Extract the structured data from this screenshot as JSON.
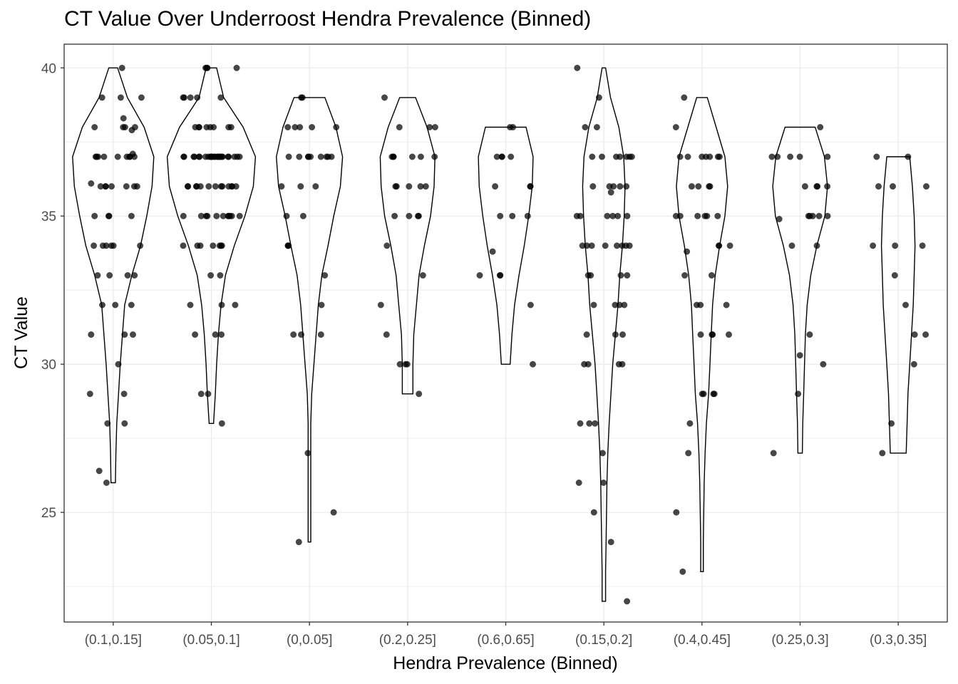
{
  "chart_data": {
    "type": "violin",
    "title": "CT Value Over Underroost Hendra Prevalence (Binned)",
    "xlabel": "Hendra Prevalence (Binned)",
    "ylabel": "CT Value",
    "ylim": [
      21.3,
      40.8
    ],
    "yticks": [
      25,
      30,
      35,
      40
    ],
    "grid": true,
    "colors": {
      "points": "#000000",
      "outline": "#000000",
      "grid": "#ebebeb",
      "panel_border": "#333333"
    },
    "categories": [
      "(0.1,0.15]",
      "(0.05,0.1]",
      "(0,0.05]",
      "(0.2,0.25]",
      "(0.6,0.65]",
      "(0.15,0.2]",
      "(0.4,0.45]",
      "(0.25,0.3]",
      "(0.3,0.35]"
    ],
    "series": [
      {
        "category": "(0.1,0.15]",
        "min": 26,
        "max": 40,
        "density": [
          [
            26,
            0.05
          ],
          [
            27,
            0.06
          ],
          [
            28,
            0.08
          ],
          [
            29,
            0.12
          ],
          [
            30,
            0.16
          ],
          [
            31,
            0.21
          ],
          [
            32,
            0.26
          ],
          [
            33,
            0.42
          ],
          [
            34,
            0.62
          ],
          [
            35,
            0.76
          ],
          [
            36,
            0.88
          ],
          [
            37,
            0.92
          ],
          [
            38,
            0.7
          ],
          [
            39,
            0.32
          ],
          [
            40,
            0.1
          ]
        ],
        "values": [
          40,
          39,
          39,
          39,
          38.3,
          38,
          38,
          38,
          38,
          37.9,
          37,
          37,
          37,
          37,
          37,
          37,
          37,
          37,
          37,
          37.1,
          36.1,
          36,
          36,
          36,
          36,
          36,
          36,
          36,
          35,
          35,
          35,
          35,
          34,
          34,
          34,
          34,
          34,
          34,
          33,
          33,
          33,
          33,
          32,
          32,
          32,
          31,
          31,
          31,
          30,
          29,
          29,
          28,
          28,
          26.4,
          26
        ]
      },
      {
        "category": "(0.05,0.1]",
        "min": 28,
        "max": 40,
        "density": [
          [
            28,
            0.05
          ],
          [
            29,
            0.09
          ],
          [
            30,
            0.12
          ],
          [
            31,
            0.16
          ],
          [
            32,
            0.22
          ],
          [
            33,
            0.32
          ],
          [
            34,
            0.52
          ],
          [
            35,
            0.76
          ],
          [
            36,
            0.95
          ],
          [
            37,
            1.0
          ],
          [
            38,
            0.72
          ],
          [
            39,
            0.28
          ],
          [
            40,
            0.12
          ]
        ],
        "values": [
          40,
          40,
          40,
          40,
          39,
          39,
          39,
          39,
          39,
          38,
          38,
          38,
          38,
          38,
          38,
          38,
          38,
          37,
          37,
          37,
          37,
          37,
          37,
          37,
          37,
          37,
          37,
          37,
          37,
          37,
          37,
          37,
          37,
          37,
          37,
          37,
          37,
          37,
          37,
          37,
          37,
          37,
          37,
          36,
          36,
          36,
          36,
          36,
          36,
          36,
          36,
          36,
          36,
          36,
          36,
          36,
          35,
          35,
          35,
          35,
          35,
          35,
          35,
          35,
          35,
          35,
          35,
          34,
          34,
          34,
          34,
          34,
          34,
          34,
          33,
          33,
          32,
          32,
          32,
          31,
          31,
          31,
          29,
          29,
          28
        ]
      },
      {
        "category": "(0,0.05]",
        "min": 24,
        "max": 39,
        "density": [
          [
            24,
            0.03
          ],
          [
            25,
            0.03
          ],
          [
            26,
            0.03
          ],
          [
            27,
            0.03
          ],
          [
            28,
            0.03
          ],
          [
            29,
            0.05
          ],
          [
            30,
            0.1
          ],
          [
            31,
            0.15
          ],
          [
            32,
            0.2
          ],
          [
            33,
            0.28
          ],
          [
            34,
            0.42
          ],
          [
            35,
            0.55
          ],
          [
            36,
            0.7
          ],
          [
            37,
            0.75
          ],
          [
            38,
            0.6
          ],
          [
            39,
            0.35
          ]
        ],
        "values": [
          39,
          39,
          38,
          38,
          38,
          38,
          38,
          37,
          37,
          37,
          37,
          37,
          37,
          37,
          37,
          37,
          36,
          36,
          36,
          35,
          35,
          34,
          34,
          34,
          33,
          32,
          31,
          31,
          31,
          27,
          25,
          24
        ]
      },
      {
        "category": "(0.2,0.25]",
        "min": 29,
        "max": 39,
        "density": [
          [
            29,
            0.12
          ],
          [
            30,
            0.12
          ],
          [
            31,
            0.14
          ],
          [
            32,
            0.2
          ],
          [
            33,
            0.26
          ],
          [
            34,
            0.38
          ],
          [
            35,
            0.52
          ],
          [
            36,
            0.6
          ],
          [
            37,
            0.62
          ],
          [
            38,
            0.44
          ],
          [
            39,
            0.18
          ]
        ],
        "values": [
          39,
          38,
          38,
          38,
          37,
          37,
          37,
          37,
          37,
          37,
          36,
          36,
          36,
          36,
          36,
          35,
          35,
          35,
          35,
          34,
          33,
          32,
          31,
          30,
          30,
          30,
          29
        ]
      },
      {
        "category": "(0.6,0.65]",
        "min": 30,
        "max": 38,
        "density": [
          [
            30,
            0.1
          ],
          [
            31,
            0.14
          ],
          [
            32,
            0.2
          ],
          [
            33,
            0.3
          ],
          [
            34,
            0.42
          ],
          [
            35,
            0.52
          ],
          [
            36,
            0.6
          ],
          [
            37,
            0.62
          ],
          [
            38,
            0.46
          ]
        ],
        "values": [
          38,
          38,
          37,
          37,
          37,
          37,
          36,
          36,
          36,
          35,
          35,
          35,
          33.8,
          33,
          33,
          33,
          32,
          30
        ]
      },
      {
        "category": "(0.15,0.2]",
        "min": 22,
        "max": 40,
        "density": [
          [
            22,
            0.04
          ],
          [
            23,
            0.04
          ],
          [
            24,
            0.05
          ],
          [
            25,
            0.06
          ],
          [
            26,
            0.07
          ],
          [
            27,
            0.09
          ],
          [
            28,
            0.12
          ],
          [
            29,
            0.16
          ],
          [
            30,
            0.2
          ],
          [
            31,
            0.26
          ],
          [
            32,
            0.32
          ],
          [
            33,
            0.36
          ],
          [
            34,
            0.42
          ],
          [
            35,
            0.46
          ],
          [
            36,
            0.48
          ],
          [
            37,
            0.45
          ],
          [
            38,
            0.34
          ],
          [
            39,
            0.15
          ],
          [
            40,
            0.04
          ]
        ],
        "values": [
          40,
          39,
          38,
          38,
          37,
          37,
          37,
          37,
          37,
          37,
          37,
          36,
          36,
          36,
          36,
          36,
          35.8,
          35,
          35,
          35,
          35,
          35,
          35,
          34,
          34,
          34,
          34,
          34,
          34,
          34,
          34,
          33,
          33,
          33,
          33,
          32,
          32,
          32,
          32,
          31,
          31,
          31,
          30,
          30,
          30,
          30,
          28,
          28,
          28,
          27,
          26,
          26,
          25,
          24,
          22
        ]
      },
      {
        "category": "(0.4,0.45]",
        "min": 23,
        "max": 39,
        "density": [
          [
            23,
            0.03
          ],
          [
            24,
            0.03
          ],
          [
            25,
            0.04
          ],
          [
            26,
            0.05
          ],
          [
            27,
            0.07
          ],
          [
            28,
            0.1
          ],
          [
            29,
            0.15
          ],
          [
            30,
            0.18
          ],
          [
            31,
            0.21
          ],
          [
            32,
            0.24
          ],
          [
            33,
            0.3
          ],
          [
            34,
            0.4
          ],
          [
            35,
            0.52
          ],
          [
            36,
            0.58
          ],
          [
            37,
            0.52
          ],
          [
            38,
            0.32
          ],
          [
            39,
            0.12
          ]
        ],
        "values": [
          39,
          38,
          37,
          37,
          37,
          37,
          37,
          37,
          37,
          36,
          36,
          36,
          36,
          35,
          35,
          35,
          35,
          35,
          35,
          34,
          34,
          34,
          33.8,
          33,
          33,
          32,
          32,
          32,
          31,
          31,
          31,
          31,
          29,
          29,
          29,
          29,
          28,
          27,
          25,
          23
        ]
      },
      {
        "category": "(0.25,0.3]",
        "min": 27,
        "max": 38,
        "density": [
          [
            27,
            0.05
          ],
          [
            28,
            0.06
          ],
          [
            29,
            0.08
          ],
          [
            30,
            0.1
          ],
          [
            31,
            0.12
          ],
          [
            32,
            0.16
          ],
          [
            33,
            0.24
          ],
          [
            34,
            0.38
          ],
          [
            35,
            0.56
          ],
          [
            36,
            0.62
          ],
          [
            37,
            0.55
          ],
          [
            38,
            0.34
          ]
        ],
        "values": [
          38,
          37,
          37,
          37,
          37,
          37,
          36,
          36,
          36,
          36,
          35,
          35,
          35,
          35,
          35,
          34.9,
          34,
          34,
          31,
          30.3,
          30,
          29,
          27
        ]
      },
      {
        "category": "(0.3,0.35]",
        "min": 27,
        "max": 37,
        "density": [
          [
            27,
            0.18
          ],
          [
            28,
            0.2
          ],
          [
            29,
            0.22
          ],
          [
            30,
            0.26
          ],
          [
            31,
            0.3
          ],
          [
            32,
            0.34
          ],
          [
            33,
            0.36
          ],
          [
            34,
            0.38
          ],
          [
            35,
            0.36
          ],
          [
            36,
            0.32
          ],
          [
            37,
            0.26
          ]
        ],
        "values": [
          37,
          37,
          36,
          36,
          36,
          34,
          34,
          34,
          33,
          32,
          31,
          31,
          30,
          28,
          27
        ]
      }
    ]
  }
}
